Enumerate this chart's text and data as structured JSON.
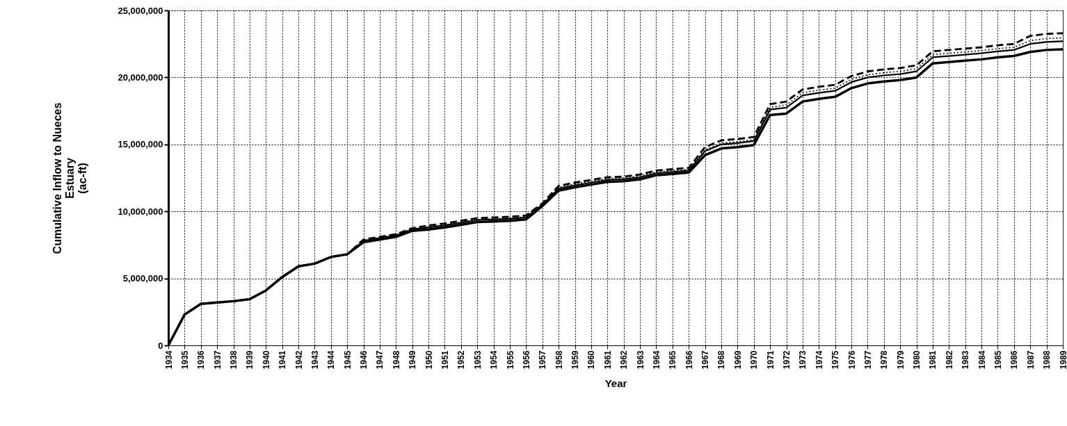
{
  "chart_data": {
    "type": "line",
    "xlabel": "Year",
    "ylabel": "Cumulative Inflow to Nueces\nEstuary\n(ac-ft)",
    "x": [
      1934,
      1935,
      1936,
      1937,
      1938,
      1939,
      1940,
      1941,
      1942,
      1943,
      1944,
      1945,
      1946,
      1947,
      1948,
      1949,
      1950,
      1951,
      1952,
      1953,
      1954,
      1955,
      1956,
      1957,
      1958,
      1959,
      1960,
      1961,
      1962,
      1963,
      1964,
      1965,
      1966,
      1967,
      1968,
      1969,
      1970,
      1971,
      1972,
      1973,
      1974,
      1975,
      1976,
      1977,
      1978,
      1979,
      1980,
      1981,
      1982,
      1983,
      1984,
      1985,
      1986,
      1987,
      1988,
      1989
    ],
    "series": [
      {
        "color": "#000000",
        "line_style": "solid",
        "values": [
          0,
          2300000,
          3100000,
          3200000,
          3300000,
          3450000,
          4100000,
          5100000,
          5900000,
          6100000,
          6600000,
          6800000,
          7700000,
          7900000,
          8100000,
          8550000,
          8650000,
          8800000,
          9000000,
          9200000,
          9250000,
          9300000,
          9400000,
          10400000,
          11550000,
          11800000,
          12000000,
          12200000,
          12250000,
          12400000,
          12700000,
          12800000,
          12900000,
          14200000,
          14700000,
          14800000,
          14950000,
          17200000,
          17300000,
          18200000,
          18400000,
          18550000,
          19200000,
          19550000,
          19700000,
          19800000,
          20000000,
          21050000,
          21150000,
          21250000,
          21350000,
          21500000,
          21600000,
          21900000,
          22050000,
          22100000
        ]
      },
      {
        "color": "#000000",
        "line_style": "dashed",
        "values": [
          0,
          2300000,
          3100000,
          3200000,
          3300000,
          3450000,
          4100000,
          5100000,
          5900000,
          6100000,
          6600000,
          6800000,
          7900000,
          8100000,
          8300000,
          8750000,
          8950000,
          9100000,
          9300000,
          9500000,
          9550000,
          9600000,
          9700000,
          10600000,
          11900000,
          12150000,
          12350000,
          12550000,
          12600000,
          12750000,
          13050000,
          13150000,
          13250000,
          14800000,
          15300000,
          15400000,
          15550000,
          18000000,
          18200000,
          19100000,
          19300000,
          19450000,
          20100000,
          20450000,
          20600000,
          20700000,
          20900000,
          21950000,
          22050000,
          22150000,
          22250000,
          22400000,
          22500000,
          23100000,
          23250000,
          23300000
        ]
      },
      {
        "color": "#000000",
        "line_style": "solid",
        "values": [
          0,
          2300000,
          3100000,
          3200000,
          3300000,
          3450000,
          4100000,
          5100000,
          5900000,
          6100000,
          6600000,
          6800000,
          7800000,
          8000000,
          8200000,
          8650000,
          8800000,
          8950000,
          9150000,
          9350000,
          9400000,
          9450000,
          9550000,
          10500000,
          11700000,
          11950000,
          12150000,
          12350000,
          12400000,
          12550000,
          12850000,
          12950000,
          13050000,
          14500000,
          15000000,
          15100000,
          15250000,
          17600000,
          17750000,
          18650000,
          18850000,
          19000000,
          19650000,
          20000000,
          20150000,
          20250000,
          20450000,
          21500000,
          21600000,
          21700000,
          21800000,
          21950000,
          22050000,
          22500000,
          22650000,
          22700000
        ]
      },
      {
        "color": "#000000",
        "line_style": "dotted",
        "values": [
          0,
          2300000,
          3100000,
          3200000,
          3300000,
          3450000,
          4100000,
          5100000,
          5900000,
          6100000,
          6600000,
          6800000,
          7850000,
          8050000,
          8250000,
          8700000,
          8850000,
          9000000,
          9200000,
          9400000,
          9450000,
          9500000,
          9600000,
          10550000,
          11800000,
          12050000,
          12250000,
          12450000,
          12500000,
          12650000,
          12950000,
          13050000,
          13150000,
          14600000,
          15100000,
          15200000,
          15350000,
          17750000,
          17950000,
          18850000,
          19050000,
          19200000,
          19850000,
          20200000,
          20350000,
          20450000,
          20650000,
          21700000,
          21800000,
          21900000,
          22000000,
          22150000,
          22250000,
          22750000,
          22900000,
          22950000
        ]
      }
    ],
    "xlim": [
      1934,
      1989
    ],
    "xticks": [
      1934,
      1935,
      1936,
      1937,
      1938,
      1939,
      1940,
      1941,
      1942,
      1943,
      1944,
      1945,
      1946,
      1947,
      1948,
      1949,
      1950,
      1951,
      1952,
      1953,
      1954,
      1955,
      1956,
      1957,
      1958,
      1959,
      1960,
      1961,
      1962,
      1963,
      1964,
      1965,
      1966,
      1967,
      1968,
      1969,
      1970,
      1971,
      1972,
      1973,
      1974,
      1975,
      1976,
      1977,
      1978,
      1979,
      1980,
      1981,
      1982,
      1983,
      1984,
      1985,
      1986,
      1987,
      1988,
      1989
    ],
    "ylim": [
      0,
      25000000
    ],
    "yticks": [
      0,
      {
        "value": 5000000,
        "label": "5,000,000"
      },
      {
        "value": 10000000,
        "label": "10,000,000"
      },
      {
        "value": 15000000,
        "label": "15,000,000"
      },
      {
        "value": 20000000,
        "label": "20,000,000"
      },
      {
        "value": 25000000,
        "label": "25,000,000"
      }
    ],
    "grid": true,
    "marker": "none"
  }
}
